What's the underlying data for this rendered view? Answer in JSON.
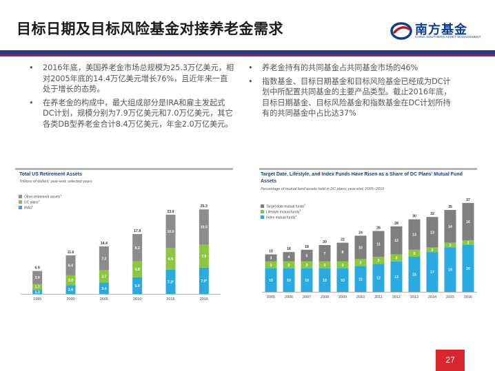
{
  "header": {
    "title": "目标日期及目标风险基金对接养老金需求",
    "logo_text": "南方基金",
    "logo_sub": "CHINA SOUTHERN ASSET MANAGEMENT"
  },
  "colors": {
    "brand_blue": "#1b3a8c",
    "brand_red": "#c8102e",
    "other_series": "#8c8c8c",
    "dc_series": "#8dc63f",
    "ira_series": "#29abe2",
    "target_date_series": "#7f7f7f",
    "lifestyle_series": "#8dc63f",
    "index_series": "#29abe2"
  },
  "bullets_left": [
    "2016年底，美国养老金市场总规模为25.3万亿美元，相对2005年底的14.4万亿美元增长76%，且近年来一直处于增长的态势。",
    "在养老金的构成中，最大组成部分是IRA和雇主发起式DC计划，规模分别为7.9万亿美元和7.0万亿美元，其它各类DB型养老金合计8.4万亿美元，年金2.0万亿美元。"
  ],
  "bullets_right": [
    "养老金持有的共同基金占共同基金市场的46%",
    "指数基金、目标日期基金和目标风险基金已经成为DC计划中所配置共同基金的主要产品类型。截止2016年底，目标日期基金、目标风险基金和指数基金在DC计划所持有的共同基金中占比达37%"
  ],
  "page_number": "27",
  "chart_data": [
    {
      "type": "bar",
      "stacked": true,
      "title": "Total US Retirement Assets",
      "subtitle": "Trillions of dollars; year-end, selected years",
      "categories": [
        "1995",
        "2000",
        "2005",
        "2010",
        "2015",
        "2016"
      ],
      "series": [
        {
          "name": "IRAs",
          "superscript": "2",
          "values": [
            1.3,
            2.6,
            3.4,
            5.0,
            7.3,
            7.9
          ],
          "labels": [
            "1.3",
            "2.6",
            "3.4",
            "5.0",
            "7.3",
            "7.9"
          ],
          "label_marks": [
            "",
            "",
            "",
            "",
            "e",
            "e"
          ],
          "color": "#29abe2"
        },
        {
          "name": "DC plans",
          "superscript": "2",
          "values": [
            1.7,
            3.0,
            3.7,
            4.8,
            6.5,
            7.0
          ],
          "labels": [
            "1.7",
            "3.0",
            "3.7",
            "4.8",
            "6.5",
            "7.0"
          ],
          "label_marks": [
            "",
            "",
            "",
            "",
            "",
            ""
          ],
          "color": "#8dc63f"
        },
        {
          "name": "Other retirement assets",
          "superscript": "1",
          "values": [
            3.9,
            6.0,
            7.2,
            8.2,
            10.0,
            10.5
          ],
          "labels": [
            "3.9",
            "6.0",
            "7.2",
            "8.2",
            "10.0",
            "10.5"
          ],
          "label_marks": [
            "",
            "",
            "",
            "",
            "",
            ""
          ],
          "color": "#8c8c8c"
        }
      ],
      "totals": [
        "6.9",
        "11.6",
        "14.4",
        "17.9",
        "23.9",
        "25.3"
      ],
      "legend_order": [
        2,
        1,
        0
      ],
      "legend_position": "top-left",
      "ylim": [
        0,
        30
      ]
    },
    {
      "type": "bar",
      "stacked": true,
      "title": "Target Date, Lifestyle, and Index Funds Have Risen as a Share of DC Plans' Mutual Fund Assets",
      "subtitle": "Percentage of mutual fund assets held in DC plans; year-end, 2005–2016",
      "subtitle_superscript": "1",
      "categories": [
        "2005",
        "2006",
        "2007",
        "2008",
        "2009",
        "2010",
        "2011",
        "2012",
        "2013",
        "2014",
        "2015",
        "2016"
      ],
      "series": [
        {
          "name": "Index mutual funds",
          "superscript": "4",
          "values": [
            10,
            10,
            10,
            10,
            10,
            11,
            12,
            13,
            15,
            17,
            19,
            20
          ],
          "color": "#29abe2"
        },
        {
          "name": "Lifestyle mutual funds",
          "superscript": "3",
          "values": [
            3,
            3,
            3,
            3,
            3,
            3,
            3,
            3,
            3,
            2,
            2,
            2
          ],
          "color": "#8dc63f"
        },
        {
          "name": "Target date mutual funds",
          "superscript": "2",
          "values": [
            3,
            4,
            5,
            7,
            8,
            10,
            11,
            12,
            13,
            13,
            14,
            16
          ],
          "color": "#7f7f7f"
        }
      ],
      "totals": [
        15,
        16,
        18,
        20,
        22,
        24,
        26,
        28,
        30,
        32,
        35,
        37
      ],
      "legend_order": [
        2,
        1,
        0
      ],
      "legend_position": "top-left",
      "ylim": [
        0,
        40
      ]
    }
  ]
}
